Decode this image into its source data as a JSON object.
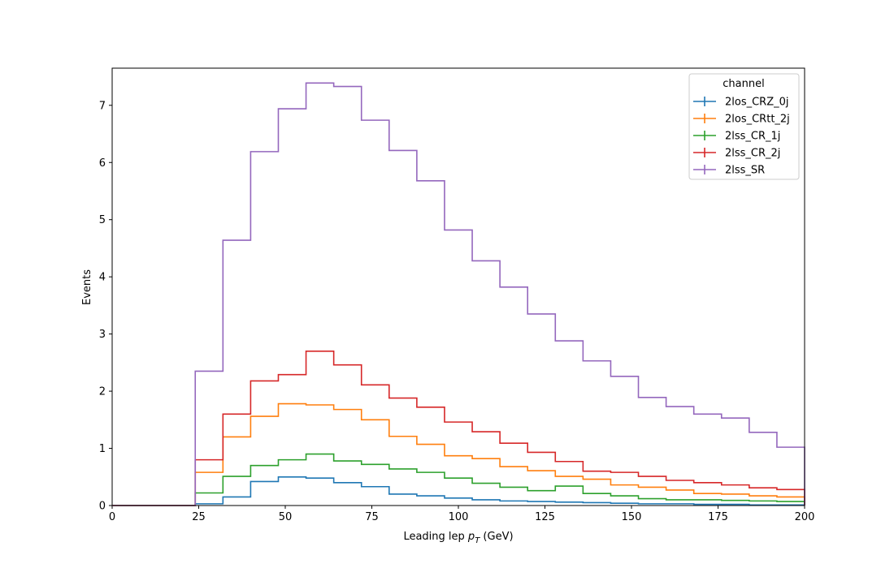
{
  "chart_data": {
    "type": "line",
    "style": "step histogram",
    "xlabel_main": "Leading lep ",
    "xlabel_var": "p",
    "xlabel_sub": "T",
    "xlabel_unit": " (GeV)",
    "ylabel": "Events",
    "xlim": [
      0,
      200
    ],
    "ylim": [
      0,
      7.65
    ],
    "x_ticks": [
      0,
      25,
      50,
      75,
      100,
      125,
      150,
      175,
      200
    ],
    "y_ticks": [
      0,
      1,
      2,
      3,
      4,
      5,
      6,
      7
    ],
    "grid": false,
    "legend": {
      "title": "channel",
      "placement": "top-right"
    },
    "bin_edges": [
      0,
      8,
      16,
      24,
      32,
      40,
      48,
      56,
      64,
      72,
      80,
      88,
      96,
      104,
      112,
      120,
      128,
      136,
      144,
      152,
      160,
      168,
      176,
      184,
      192,
      200
    ],
    "series": [
      {
        "name": "2los_CRZ_0j",
        "color": "#1f77b4",
        "values": [
          0,
          0,
          0,
          0.03,
          0.15,
          0.42,
          0.5,
          0.48,
          0.4,
          0.33,
          0.2,
          0.17,
          0.13,
          0.1,
          0.08,
          0.07,
          0.06,
          0.05,
          0.04,
          0.03,
          0.03,
          0.02,
          0.02,
          0.01,
          0.01
        ]
      },
      {
        "name": "2los_CRtt_2j",
        "color": "#ff7f0e",
        "values": [
          0,
          0,
          0,
          0.58,
          1.2,
          1.56,
          1.78,
          1.76,
          1.68,
          1.5,
          1.21,
          1.07,
          0.87,
          0.82,
          0.68,
          0.61,
          0.51,
          0.46,
          0.36,
          0.32,
          0.27,
          0.21,
          0.2,
          0.17,
          0.15
        ]
      },
      {
        "name": "2lss_CR_1j",
        "color": "#2ca02c",
        "values": [
          0,
          0,
          0,
          0.22,
          0.51,
          0.7,
          0.8,
          0.9,
          0.78,
          0.72,
          0.64,
          0.58,
          0.48,
          0.39,
          0.32,
          0.26,
          0.34,
          0.21,
          0.17,
          0.12,
          0.1,
          0.1,
          0.09,
          0.08,
          0.07
        ]
      },
      {
        "name": "2lss_CR_2j",
        "color": "#d62728",
        "values": [
          0,
          0,
          0,
          0.8,
          1.6,
          2.18,
          2.29,
          2.7,
          2.46,
          2.11,
          1.88,
          1.72,
          1.46,
          1.29,
          1.09,
          0.93,
          0.77,
          0.6,
          0.58,
          0.51,
          0.44,
          0.4,
          0.36,
          0.31,
          0.28
        ]
      },
      {
        "name": "2lss_SR",
        "color": "#9467bd",
        "values": [
          0,
          0,
          0,
          2.35,
          4.64,
          6.19,
          6.94,
          7.39,
          7.33,
          6.74,
          6.21,
          5.68,
          4.82,
          4.28,
          3.82,
          3.35,
          2.88,
          2.53,
          2.26,
          1.89,
          1.73,
          1.6,
          1.53,
          1.28,
          1.02
        ]
      }
    ]
  }
}
